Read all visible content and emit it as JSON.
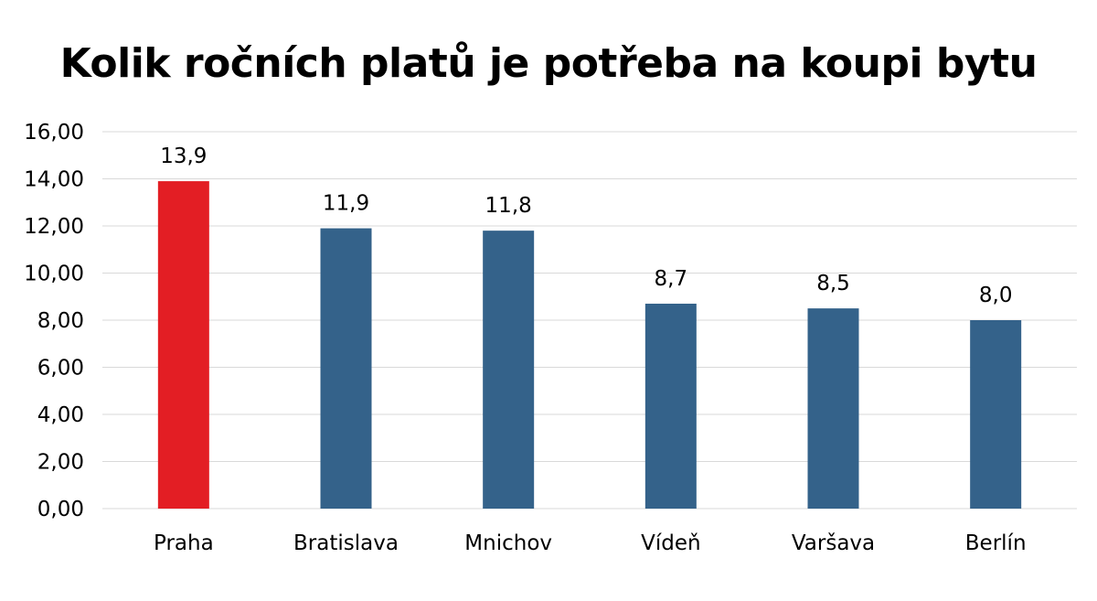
{
  "chart_data": {
    "type": "bar",
    "title": "Kolik ročních platů je potřeba na koupi bytu",
    "categories": [
      "Praha",
      "Bratislava",
      "Mnichov",
      "Vídeň",
      "Varšava",
      "Berlín"
    ],
    "values": [
      13.9,
      11.9,
      11.8,
      8.7,
      8.5,
      8.0
    ],
    "data_labels": [
      "13,9",
      "11,9",
      "11,8",
      "8,7",
      "8,5",
      "8,0"
    ],
    "ylim": [
      0,
      16
    ],
    "yticks": [
      0,
      2,
      4,
      6,
      8,
      10,
      12,
      14,
      16
    ],
    "ytick_labels": [
      "0,00",
      "2,00",
      "4,00",
      "6,00",
      "8,00",
      "10,00",
      "12,00",
      "14,00",
      "16,00"
    ],
    "xlabel": "",
    "ylabel": "",
    "grid": true,
    "legend": "none",
    "bar_colors": [
      "#E31E24",
      "#34628A",
      "#34628A",
      "#34628A",
      "#34628A",
      "#34628A"
    ],
    "gridline_color": "#D9D9D9"
  }
}
